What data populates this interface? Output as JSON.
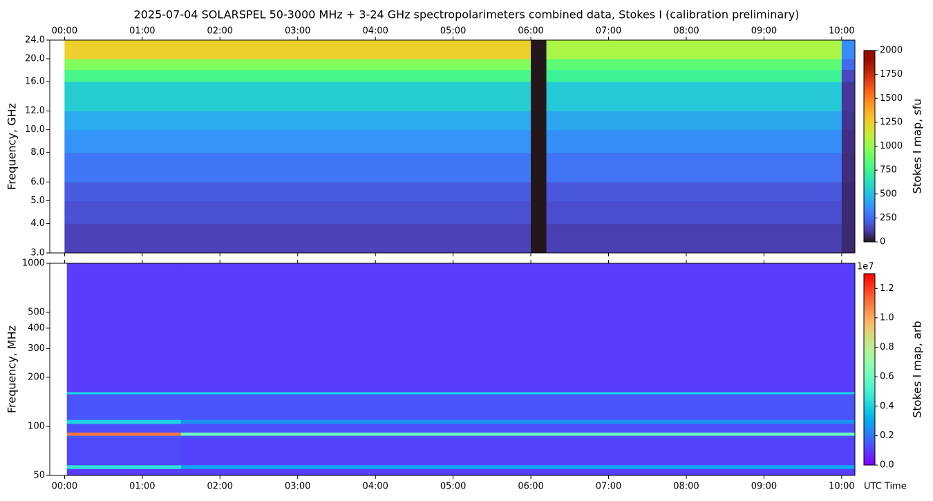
{
  "chart_data": [
    {
      "type": "heatmap",
      "title": "2025-07-04  SOLARSPEL  50-3000 MHz  +  3-24 GHz  spectropolarimeters combined data,  Stokes I  (calibration preliminary)",
      "ylabel": "Frequency, GHz",
      "log_y": true,
      "x_edges": [
        0,
        6.0,
        6.2,
        10.0,
        10.17
      ],
      "y_edges": [
        3,
        4,
        5,
        6,
        8,
        10,
        12,
        16,
        18,
        20,
        24
      ],
      "z": [
        [
          140,
          0,
          130,
          60
        ],
        [
          180,
          0,
          170,
          60
        ],
        [
          210,
          0,
          200,
          60
        ],
        [
          290,
          0,
          280,
          70
        ],
        [
          370,
          0,
          360,
          80
        ],
        [
          440,
          0,
          430,
          90
        ],
        [
          560,
          0,
          540,
          100
        ],
        [
          780,
          0,
          740,
          150
        ],
        [
          950,
          0,
          850,
          250
        ],
        [
          1250,
          0,
          1050,
          350
        ]
      ],
      "xlim": [
        -0.19,
        10.17
      ],
      "xticks": [
        {
          "value": 0,
          "label": "00:00"
        },
        {
          "value": 1,
          "label": "01:00"
        },
        {
          "value": 2,
          "label": "02:00"
        },
        {
          "value": 3,
          "label": "03:00"
        },
        {
          "value": 4,
          "label": "04:00"
        },
        {
          "value": 5,
          "label": "05:00"
        },
        {
          "value": 6,
          "label": "06:00"
        },
        {
          "value": 7,
          "label": "07:00"
        },
        {
          "value": 8,
          "label": "08:00"
        },
        {
          "value": 9,
          "label": "09:00"
        },
        {
          "value": 10,
          "label": "10:00"
        }
      ],
      "xticks_position": "top",
      "ylim": [
        3,
        24
      ],
      "yticks": [
        {
          "value": 3,
          "label": "3.0"
        },
        {
          "value": 4,
          "label": "4.0"
        },
        {
          "value": 5,
          "label": "5.0"
        },
        {
          "value": 6,
          "label": "6.0"
        },
        {
          "value": 8,
          "label": "8.0"
        },
        {
          "value": 10,
          "label": "10.0"
        },
        {
          "value": 12,
          "label": "12.0"
        },
        {
          "value": 16,
          "label": "16.0"
        },
        {
          "value": 20,
          "label": "20.0"
        },
        {
          "value": 24,
          "label": "24.0"
        }
      ],
      "colorbar": {
        "label": "Stokes I map, sfu",
        "cmap": "turbo",
        "lim": [
          0,
          2000
        ],
        "ticks": [
          0,
          250,
          500,
          750,
          1000,
          1250,
          1500,
          1750,
          2000
        ]
      }
    },
    {
      "type": "heatmap",
      "ylabel": "Frequency, MHz",
      "xlabel": "UTC Time",
      "log_y": true,
      "x_edges": [
        0.03,
        1.5,
        10.17
      ],
      "y_edges": [
        50,
        55,
        58,
        85,
        88,
        92,
        104,
        110,
        158,
        163,
        1000
      ],
      "z": [
        [
          1000000,
          1000000
        ],
        [
          4500000,
          3000000
        ],
        [
          1200000,
          1100000
        ],
        [
          1500000,
          1300000
        ],
        [
          11000000,
          6000000
        ],
        [
          1300000,
          1300000
        ],
        [
          4000000,
          2500000
        ],
        [
          1400000,
          1400000
        ],
        [
          4000000,
          4000000
        ],
        [
          1000000,
          1000000
        ]
      ],
      "xlim": [
        -0.19,
        10.17
      ],
      "xticks": [
        {
          "value": 0,
          "label": "00:00"
        },
        {
          "value": 1,
          "label": "01:00"
        },
        {
          "value": 2,
          "label": "02:00"
        },
        {
          "value": 3,
          "label": "03:00"
        },
        {
          "value": 4,
          "label": "04:00"
        },
        {
          "value": 5,
          "label": "05:00"
        },
        {
          "value": 6,
          "label": "06:00"
        },
        {
          "value": 7,
          "label": "07:00"
        },
        {
          "value": 8,
          "label": "08:00"
        },
        {
          "value": 9,
          "label": "09:00"
        },
        {
          "value": 10,
          "label": "10:00"
        }
      ],
      "xticks_position": "bottom",
      "ylim": [
        50,
        1000
      ],
      "yticks": [
        50,
        100,
        200,
        300,
        400,
        500,
        1000
      ],
      "colorbar": {
        "label": "Stokes I map, arb",
        "cmap": "rainbow",
        "offset_label": "1e7",
        "lim": [
          0,
          13000000
        ],
        "ticks": [
          {
            "value": 0,
            "label": "0.0"
          },
          {
            "value": 2000000,
            "label": "0.2"
          },
          {
            "value": 4000000,
            "label": "0.4"
          },
          {
            "value": 6000000,
            "label": "0.6"
          },
          {
            "value": 8000000,
            "label": "0.8"
          },
          {
            "value": 10000000,
            "label": "1.0"
          },
          {
            "value": 12000000,
            "label": "1.2"
          }
        ]
      }
    }
  ]
}
